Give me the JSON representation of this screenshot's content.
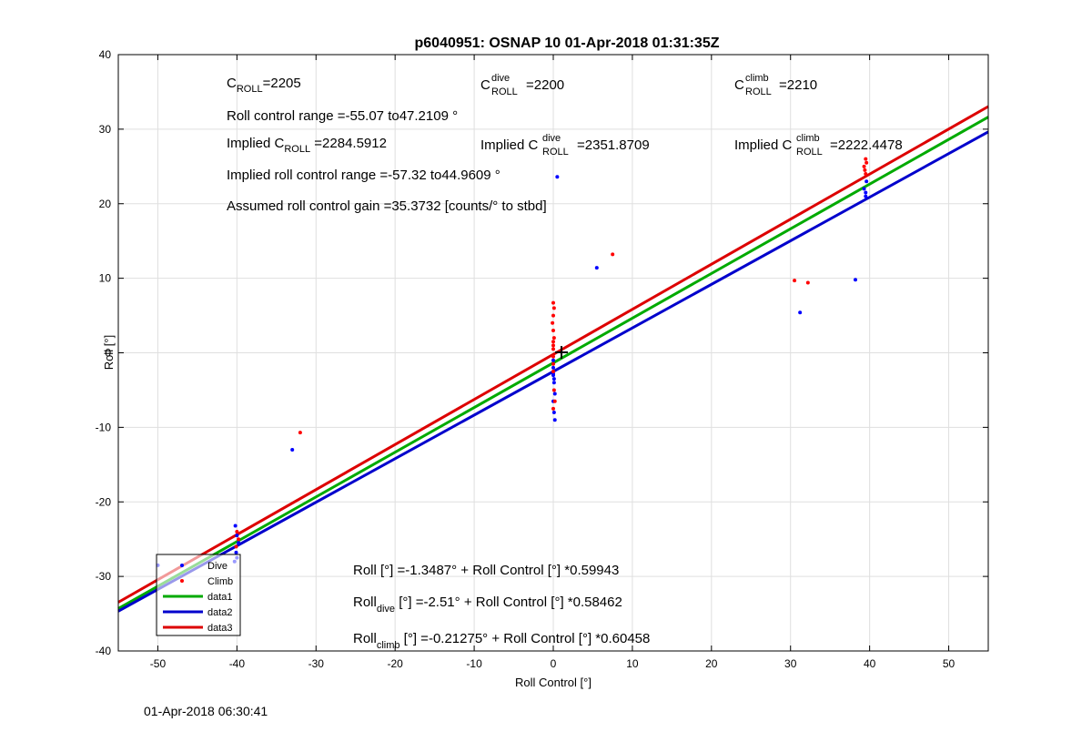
{
  "chart_data": {
    "type": "scatter",
    "title": "p6040951: OSNAP 10 01-Apr-2018 01:31:35Z",
    "xlabel": "Roll Control [°]",
    "ylabel": "Roll [°]",
    "xlim": [
      -55,
      55
    ],
    "ylim": [
      -40,
      40
    ],
    "xticks": [
      -50,
      -40,
      -30,
      -20,
      -10,
      0,
      10,
      20,
      30,
      40,
      50
    ],
    "yticks": [
      -40,
      -30,
      -20,
      -10,
      0,
      10,
      20,
      30,
      40
    ],
    "grid": true,
    "series": [
      {
        "name": "Dive",
        "kind": "points",
        "color": "#0000ff",
        "points": [
          [
            -50,
            -28.5
          ],
          [
            -40.2,
            -23.2
          ],
          [
            -40,
            -24.5
          ],
          [
            -40.1,
            -26.8
          ],
          [
            -40,
            -27.5
          ],
          [
            -40.3,
            -28
          ],
          [
            -39.8,
            -25.5
          ],
          [
            -33,
            -13
          ],
          [
            0.5,
            23.6
          ],
          [
            5.5,
            11.4
          ],
          [
            31.2,
            5.4
          ],
          [
            38.2,
            9.8
          ],
          [
            0,
            -1
          ],
          [
            0,
            -2
          ],
          [
            0,
            -3
          ],
          [
            0.1,
            -4
          ],
          [
            0.2,
            -5.5
          ],
          [
            0,
            -6.5
          ],
          [
            0.1,
            -8
          ],
          [
            0.2,
            -9
          ],
          [
            0,
            -2.8
          ],
          [
            0.1,
            -3.5
          ],
          [
            39.5,
            21
          ],
          [
            39.3,
            22
          ],
          [
            39.6,
            23
          ],
          [
            39.5,
            21.5
          ]
        ]
      },
      {
        "name": "Climb",
        "kind": "points",
        "color": "#ff0000",
        "points": [
          [
            -32,
            -10.7
          ],
          [
            -40,
            -24
          ],
          [
            -39.8,
            -25
          ],
          [
            -40.1,
            -26
          ],
          [
            0,
            6.7
          ],
          [
            0.1,
            6
          ],
          [
            0,
            5
          ],
          [
            -0.1,
            4
          ],
          [
            0,
            3
          ],
          [
            0.1,
            2
          ],
          [
            0,
            1.5
          ],
          [
            0,
            1
          ],
          [
            0,
            0.5
          ],
          [
            0,
            -0.5
          ],
          [
            0,
            -1.5
          ],
          [
            0,
            -2.5
          ],
          [
            0.1,
            -5
          ],
          [
            0.2,
            -6.5
          ],
          [
            0,
            -7.5
          ],
          [
            7.5,
            13.2
          ],
          [
            30.5,
            9.7
          ],
          [
            32.2,
            9.4
          ],
          [
            39.3,
            25
          ],
          [
            39.5,
            26
          ],
          [
            39.4,
            24.5
          ],
          [
            39.6,
            25.5
          ],
          [
            39.5,
            24
          ]
        ]
      },
      {
        "name": "data1",
        "kind": "line",
        "color": "#00aa00",
        "intercept": -1.3487,
        "slope": 0.59943
      },
      {
        "name": "data2",
        "kind": "line",
        "color": "#0000cc",
        "intercept": -2.51,
        "slope": 0.58462
      },
      {
        "name": "data3",
        "kind": "line",
        "color": "#dd0000",
        "intercept": -0.21275,
        "slope": 0.60458
      }
    ],
    "legend": {
      "placement": "bottom-left",
      "entries": [
        "Dive",
        "Climb",
        "data1",
        "data2",
        "data3"
      ]
    },
    "annotations": {
      "c_roll": {
        "base": "C",
        "sub": "ROLL",
        "tail": "=2205"
      },
      "c_roll_dive": {
        "base": "C",
        "sup": "dive",
        "sub": "ROLL",
        "tail": " =2200"
      },
      "c_roll_climb": {
        "base": "C",
        "sup": "climb",
        "sub": "ROLL",
        "tail": " =2210"
      },
      "roll_control_range": "Roll control range =-55.07 to47.2109 °",
      "implied_c_roll": {
        "head": "Implied C",
        "sub": "ROLL",
        "tail": " =2284.5912"
      },
      "implied_c_roll_dive": {
        "head": "Implied C",
        "sup": "dive",
        "sub": "ROLL",
        "tail": " =2351.8709"
      },
      "implied_c_roll_climb": {
        "head": "Implied C",
        "sup": "climb",
        "sub": "ROLL",
        "tail": " =2222.4478"
      },
      "implied_range": "Implied roll control range =-57.32 to44.9609 °",
      "assumed_gain": "Assumed roll control gain =35.3732 [counts/° to stbd]",
      "fit_all": "Roll [°] =-1.3487° + Roll Control [°] *0.59943",
      "fit_dive": {
        "head": "Roll",
        "sub": "dive",
        "tail": " [°] =-2.51° + Roll Control [°] *0.58462"
      },
      "fit_climb": {
        "head": "Roll",
        "sub": "climb",
        "tail": " [°] =-0.21275° + Roll Control [°] *0.60458"
      }
    }
  },
  "timestamp": "01-Apr-2018 06:30:41"
}
